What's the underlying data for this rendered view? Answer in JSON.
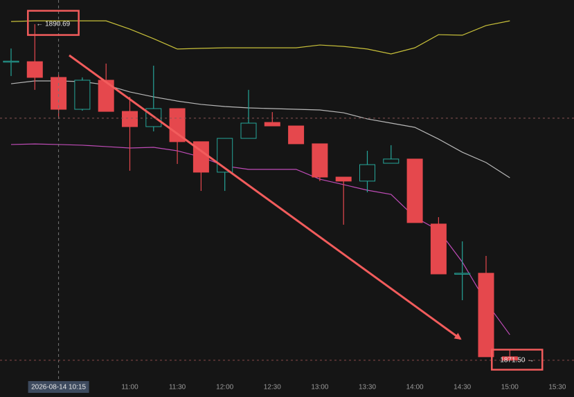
{
  "chart_data": {
    "type": "candlestick",
    "categories": [
      null,
      null,
      null,
      null,
      null,
      "11:00",
      null,
      "11:30",
      null,
      "12:00",
      null,
      "12:30",
      null,
      "13:00",
      null,
      "13:30",
      null,
      "14:00",
      null,
      "14:30",
      null,
      "15:00",
      null,
      "15:30"
    ],
    "open": [
      1888.55,
      1888.55,
      1887.65,
      1885.83,
      1887.49,
      1885.71,
      1884.84,
      1885.87,
      1883.98,
      1882.24,
      1884.17,
      1885.08,
      1884.88,
      1883.86,
      1881.96,
      1881.73,
      1882.75,
      1882.99,
      1879.28,
      1876.43,
      1876.47,
      1871.7,
      null,
      null
    ],
    "high": [
      1889.3,
      1890.69,
      1887.8,
      1887.65,
      1888.44,
      1886.54,
      1888.32,
      1885.87,
      1883.98,
      1884.17,
      1886.94,
      1885.67,
      1884.88,
      1883.86,
      1881.96,
      1883.46,
      1883.78,
      1882.99,
      1879.67,
      1878.29,
      1877.46,
      1872.13,
      null,
      null
    ],
    "low": [
      1887.73,
      1886.94,
      1885.28,
      1885.75,
      1885.71,
      1882.32,
      1884.57,
      1882.71,
      1881.17,
      1881.17,
      1884.17,
      1884.88,
      1883.86,
      1881.73,
      1879.24,
      1881.09,
      1882.75,
      1879.36,
      1876.43,
      1874.93,
      1871.7,
      1871.5,
      null,
      null
    ],
    "close": [
      1888.58,
      1887.65,
      1885.83,
      1887.49,
      1885.71,
      1884.84,
      1885.87,
      1883.98,
      1882.24,
      1884.17,
      1885.04,
      1884.88,
      1883.86,
      1881.96,
      1881.73,
      1882.67,
      1882.99,
      1879.36,
      1876.43,
      1876.47,
      1871.7,
      1871.5,
      null,
      null
    ],
    "up_color": "#26a69a",
    "down_color": "#e5484d",
    "series": [
      {
        "color": "#c9c13a",
        "values": [
          1890.84,
          1890.88,
          1890.88,
          1890.88,
          1890.88,
          1890.41,
          1889.86,
          1889.27,
          1889.31,
          1889.34,
          1889.34,
          1889.34,
          1889.34,
          1889.5,
          1889.42,
          1889.27,
          1888.99,
          1889.34,
          1890.09,
          1890.06,
          1890.61,
          1890.88,
          null,
          null
        ]
      },
      {
        "color": "#b8b8b8",
        "values": [
          1887.29,
          1887.45,
          1887.45,
          1887.41,
          1887.22,
          1886.82,
          1886.54,
          1886.3,
          1886.11,
          1885.99,
          1885.91,
          1885.87,
          1885.83,
          1885.79,
          1885.63,
          1885.28,
          1885.04,
          1884.8,
          1884.13,
          1883.38,
          1882.79,
          1881.92,
          null,
          null
        ]
      },
      {
        "color": "#c04cb8",
        "values": [
          1883.82,
          1883.85,
          1883.82,
          1883.78,
          1883.7,
          1883.62,
          1883.66,
          1883.46,
          1883.11,
          1882.59,
          1882.4,
          1882.4,
          1882.4,
          1881.84,
          1881.53,
          1881.21,
          1880.97,
          1879.67,
          1878.92,
          1877.11,
          1874.82,
          1872.96,
          null,
          null
        ]
      }
    ],
    "ylim": [
      1870.43,
      1892.07
    ],
    "crosshair": {
      "label": "2026-08-14 10:15",
      "price": 1885.32
    },
    "annotations": [
      {
        "value": 1890.69,
        "label": "← 1890.69",
        "color": "#f25c5c"
      },
      {
        "value": 1871.5,
        "label": "1871.50 →",
        "color": "#f25c5c"
      }
    ]
  }
}
